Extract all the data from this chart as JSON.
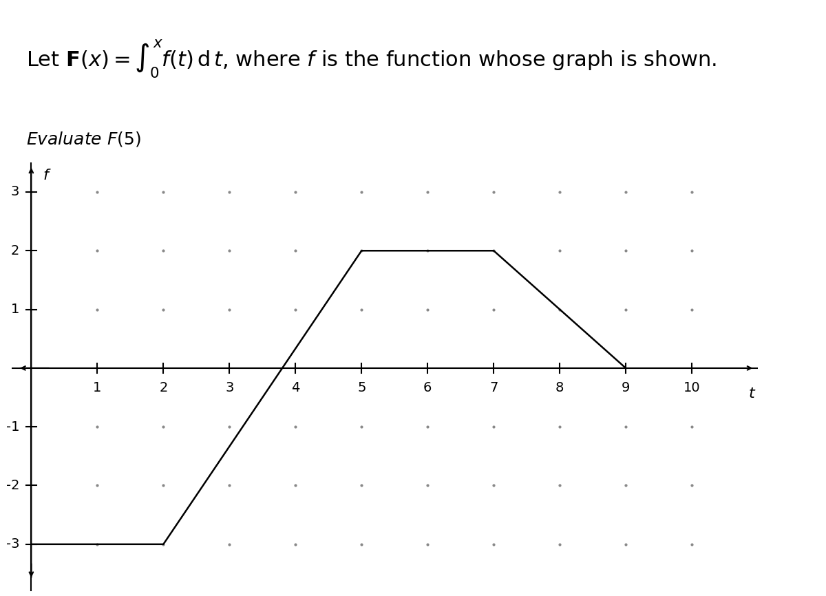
{
  "title_text": "Let $\\mathbf{F}(x) = \\int_0^x f(t)\\, \\mathrm{d}\\,t$, where $f$ is the function whose graph is shown.",
  "subtitle_text": "Evaluate $F(5)$",
  "graph_points": [
    [
      0,
      -3
    ],
    [
      2,
      -3
    ],
    [
      5,
      2
    ],
    [
      7,
      2
    ],
    [
      9,
      0
    ]
  ],
  "xlim": [
    -0.3,
    11.0
  ],
  "ylim": [
    -3.8,
    3.5
  ],
  "xticks": [
    1,
    2,
    3,
    4,
    5,
    6,
    7,
    8,
    9,
    10
  ],
  "yticks": [
    -3,
    -2,
    -1,
    1,
    2,
    3
  ],
  "xlabel": "t",
  "ylabel": "f",
  "dot_color": "#888888",
  "dot_size": 4,
  "line_color": "#000000",
  "line_width": 1.8,
  "background_color": "#ffffff",
  "grid_dot_spacing_x": 1,
  "grid_dot_spacing_y": 1,
  "title_fontsize": 22,
  "subtitle_fontsize": 18
}
